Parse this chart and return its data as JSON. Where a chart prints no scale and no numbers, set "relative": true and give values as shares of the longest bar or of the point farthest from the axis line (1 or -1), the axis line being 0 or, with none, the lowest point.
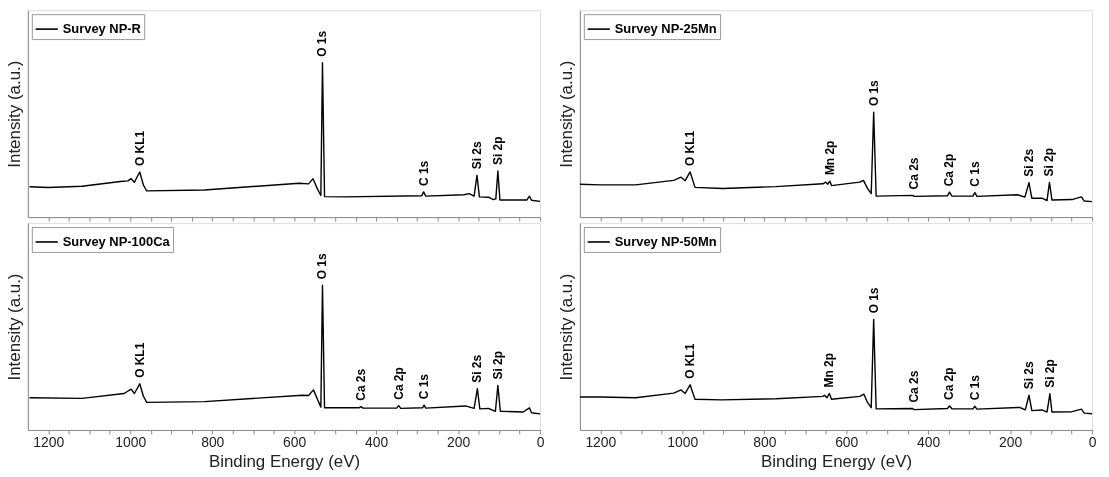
{
  "chart_data": [
    {
      "type": "line",
      "relative": true,
      "legend": "top left",
      "tick_labels": false,
      "ylabel": "Intensity (a.u.)",
      "xlim": [
        1250,
        0
      ],
      "xticks": [
        1200,
        {
          "value": 1150,
          "label": null
        },
        1000,
        {
          "value": 1100,
          "label": null
        },
        {
          "value": 1050,
          "label": null
        },
        {
          "value": 950,
          "label": null
        },
        {
          "value": 900,
          "label": null
        },
        {
          "value": 850,
          "label": null
        },
        800,
        {
          "value": 750,
          "label": null
        },
        {
          "value": 700,
          "label": null
        },
        {
          "value": 650,
          "label": null
        },
        600,
        {
          "value": 550,
          "label": null
        },
        {
          "value": 500,
          "label": null
        },
        {
          "value": 450,
          "label": null
        },
        400,
        {
          "value": 350,
          "label": null
        },
        {
          "value": 300,
          "label": null
        },
        {
          "value": 250,
          "label": null
        },
        200,
        {
          "value": 150,
          "label": null
        },
        {
          "value": 100,
          "label": null
        },
        {
          "value": 50,
          "label": null
        },
        0
      ],
      "x": [
        1246,
        1200,
        1118,
        1024,
        1006,
        998,
        990,
        977,
        968,
        960,
        819,
        588,
        565,
        554,
        544,
        535,
        531,
        526,
        477,
        289,
        284,
        279,
        186,
        173,
        161,
        154,
        148,
        126,
        114,
        108,
        103,
        98,
        32,
        26,
        21,
        0
      ],
      "series": [
        {
          "name": "Survey NP-R",
          "color": "#000000",
          "values": [
            0.197,
            0.192,
            0.2,
            0.231,
            0.235,
            0.249,
            0.226,
            0.292,
            0.208,
            0.17,
            0.176,
            0.219,
            0.215,
            0.249,
            0.186,
            0.14,
            1,
            0.133,
            0.131,
            0.138,
            0.163,
            0.136,
            0.145,
            0.152,
            0.136,
            0.271,
            0.131,
            0.129,
            0.113,
            0.118,
            0.299,
            0.111,
            0.111,
            0.136,
            0.109,
            0.102
          ]
        }
      ],
      "annotations": [
        {
          "text": "O KL1",
          "x": 977,
          "y": 0.292
        },
        {
          "text": "O 1s",
          "x": 531,
          "y": 1
        },
        {
          "text": "C 1s",
          "x": 284,
          "y": 0.163
        },
        {
          "text": "Si 2s",
          "x": 154,
          "y": 0.271
        },
        {
          "text": "Si 2p",
          "x": 103,
          "y": 0.299
        }
      ]
    },
    {
      "type": "line",
      "relative": true,
      "legend": "top left",
      "tick_labels": false,
      "ylabel": "Intensity (a.u.)",
      "xlim": [
        1250,
        0
      ],
      "xticks": [
        1200,
        {
          "value": 1150,
          "label": null
        },
        1000,
        {
          "value": 1100,
          "label": null
        },
        {
          "value": 1050,
          "label": null
        },
        {
          "value": 950,
          "label": null
        },
        {
          "value": 900,
          "label": null
        },
        {
          "value": 850,
          "label": null
        },
        800,
        {
          "value": 750,
          "label": null
        },
        {
          "value": 700,
          "label": null
        },
        {
          "value": 650,
          "label": null
        },
        600,
        {
          "value": 550,
          "label": null
        },
        {
          "value": 500,
          "label": null
        },
        {
          "value": 450,
          "label": null
        },
        400,
        {
          "value": 350,
          "label": null
        },
        {
          "value": 300,
          "label": null
        },
        {
          "value": 250,
          "label": null
        },
        200,
        {
          "value": 150,
          "label": null
        },
        {
          "value": 100,
          "label": null
        },
        {
          "value": 50,
          "label": null
        },
        0
      ],
      "x": [
        1250,
        1200,
        1114,
        1021,
        1003,
        993,
        981,
        969,
        901,
        772,
        657,
        650,
        645,
        640,
        636,
        567,
        558,
        548,
        539,
        533,
        527,
        438,
        434,
        353,
        348,
        342,
        291,
        286,
        281,
        182,
        164,
        154,
        147,
        122,
        110,
        104,
        98,
        49,
        26,
        19,
        0
      ],
      "series": [
        {
          "name": "Survey NP-25Mn",
          "color": "#000000",
          "values": [
            0.313,
            0.307,
            0.307,
            0.35,
            0.38,
            0.347,
            0.43,
            0.283,
            0.273,
            0.29,
            0.317,
            0.333,
            0.313,
            0.343,
            0.3,
            0.333,
            0.35,
            0.273,
            0.223,
            1,
            0.2,
            0.207,
            0.197,
            0.203,
            0.237,
            0.2,
            0.2,
            0.233,
            0.197,
            0.213,
            0.19,
            0.327,
            0.18,
            0.18,
            0.157,
            0.33,
            0.163,
            0.167,
            0.193,
            0.153,
            0.147
          ]
        }
      ],
      "annotations": [
        {
          "text": "O KL1",
          "x": 981,
          "y": 0.43
        },
        {
          "text": "Mn 2p",
          "x": 640,
          "y": 0.343
        },
        {
          "text": "O 1s",
          "x": 533,
          "y": 1
        },
        {
          "text": "Ca 2s",
          "x": 434,
          "y": 0.207
        },
        {
          "text": "Ca 2p",
          "x": 348,
          "y": 0.237
        },
        {
          "text": "C 1s",
          "x": 286,
          "y": 0.233
        },
        {
          "text": "Si 2s",
          "x": 154,
          "y": 0.327
        },
        {
          "text": "Si 2p",
          "x": 104,
          "y": 0.33
        }
      ]
    },
    {
      "type": "line",
      "relative": true,
      "legend": "top left",
      "tick_labels": "x",
      "ylabel": "Intensity (a.u.)",
      "xlabel": "Binding Energy (eV)",
      "xlim": [
        1250,
        0
      ],
      "xticks": [
        1200,
        {
          "value": 1150,
          "label": null
        },
        1000,
        {
          "value": 1100,
          "label": null
        },
        {
          "value": 1050,
          "label": null
        },
        {
          "value": 950,
          "label": null
        },
        {
          "value": 900,
          "label": null
        },
        {
          "value": 850,
          "label": null
        },
        800,
        {
          "value": 750,
          "label": null
        },
        {
          "value": 700,
          "label": null
        },
        {
          "value": 650,
          "label": null
        },
        600,
        {
          "value": 550,
          "label": null
        },
        {
          "value": 500,
          "label": null
        },
        {
          "value": 450,
          "label": null
        },
        400,
        {
          "value": 350,
          "label": null
        },
        {
          "value": 300,
          "label": null
        },
        {
          "value": 250,
          "label": null
        },
        200,
        {
          "value": 150,
          "label": null
        },
        {
          "value": 100,
          "label": null
        },
        {
          "value": 50,
          "label": null
        },
        0
      ],
      "x": [
        1246,
        1118,
        1015,
        998,
        990,
        977,
        968,
        960,
        819,
        580,
        565,
        553,
        542,
        535,
        531,
        526,
        442,
        437,
        432,
        350,
        345,
        340,
        287,
        283,
        279,
        182,
        161,
        153,
        147,
        126,
        109,
        103,
        97,
        41,
        26,
        21,
        0
      ],
      "series": [
        {
          "name": "Survey NP-100Ca",
          "color": "#000000",
          "values": [
            0.223,
            0.218,
            0.252,
            0.282,
            0.252,
            0.319,
            0.233,
            0.191,
            0.196,
            0.24,
            0.238,
            0.277,
            0.203,
            0.158,
            1,
            0.153,
            0.153,
            0.161,
            0.151,
            0.151,
            0.168,
            0.149,
            0.153,
            0.171,
            0.151,
            0.166,
            0.149,
            0.285,
            0.146,
            0.149,
            0.129,
            0.307,
            0.129,
            0.124,
            0.153,
            0.119,
            0.111
          ]
        }
      ],
      "annotations": [
        {
          "text": "O KL1",
          "x": 977,
          "y": 0.319
        },
        {
          "text": "O 1s",
          "x": 531,
          "y": 1
        },
        {
          "text": "Ca 2s",
          "x": 437,
          "y": 0.161
        },
        {
          "text": "Ca 2p",
          "x": 345,
          "y": 0.168
        },
        {
          "text": "C 1s",
          "x": 283,
          "y": 0.171
        },
        {
          "text": "Si 2s",
          "x": 153,
          "y": 0.285
        },
        {
          "text": "Si 2p",
          "x": 103,
          "y": 0.307
        }
      ]
    },
    {
      "type": "line",
      "relative": true,
      "legend": "top left",
      "tick_labels": "x",
      "ylabel": "Intensity (a.u.)",
      "xlabel": "Binding Energy (eV)",
      "xlim": [
        1250,
        0
      ],
      "xticks": [
        1200,
        {
          "value": 1150,
          "label": null
        },
        1000,
        {
          "value": 1100,
          "label": null
        },
        {
          "value": 1050,
          "label": null
        },
        {
          "value": 950,
          "label": null
        },
        {
          "value": 900,
          "label": null
        },
        {
          "value": 850,
          "label": null
        },
        800,
        {
          "value": 750,
          "label": null
        },
        {
          "value": 700,
          "label": null
        },
        {
          "value": 650,
          "label": null
        },
        600,
        {
          "value": 550,
          "label": null
        },
        {
          "value": 500,
          "label": null
        },
        {
          "value": 450,
          "label": null
        },
        400,
        {
          "value": 350,
          "label": null
        },
        {
          "value": 300,
          "label": null
        },
        {
          "value": 250,
          "label": null
        },
        200,
        {
          "value": 150,
          "label": null
        },
        {
          "value": 100,
          "label": null
        },
        {
          "value": 50,
          "label": null
        },
        0
      ],
      "x": [
        1250,
        1200,
        1114,
        1021,
        1003,
        993,
        981,
        969,
        905,
        772,
        657,
        653,
        647,
        641,
        636,
        567,
        557,
        548,
        539,
        533,
        527,
        438,
        434,
        353,
        348,
        342,
        291,
        286,
        281,
        177,
        163,
        154,
        147,
        122,
        110,
        103,
        98,
        49,
        26,
        19,
        0
      ],
      "series": [
        {
          "name": "Survey NP-50Mn",
          "color": "#000000",
          "values": [
            0.298,
            0.298,
            0.291,
            0.333,
            0.362,
            0.33,
            0.408,
            0.278,
            0.272,
            0.282,
            0.304,
            0.314,
            0.291,
            0.33,
            0.278,
            0.304,
            0.324,
            0.249,
            0.201,
            1,
            0.191,
            0.194,
            0.184,
            0.194,
            0.217,
            0.191,
            0.191,
            0.214,
            0.188,
            0.204,
            0.181,
            0.314,
            0.175,
            0.181,
            0.162,
            0.327,
            0.162,
            0.165,
            0.188,
            0.152,
            0.146
          ]
        }
      ],
      "annotations": [
        {
          "text": "O KL1",
          "x": 981,
          "y": 0.408
        },
        {
          "text": "Mn 2p",
          "x": 641,
          "y": 0.33
        },
        {
          "text": "O 1s",
          "x": 533,
          "y": 1
        },
        {
          "text": "Ca 2s",
          "x": 434,
          "y": 0.194
        },
        {
          "text": "Ca 2p",
          "x": 348,
          "y": 0.217
        },
        {
          "text": "C 1s",
          "x": 286,
          "y": 0.214
        },
        {
          "text": "Si 2s",
          "x": 154,
          "y": 0.314
        },
        {
          "text": "Si 2p",
          "x": 103,
          "y": 0.327
        }
      ]
    }
  ]
}
